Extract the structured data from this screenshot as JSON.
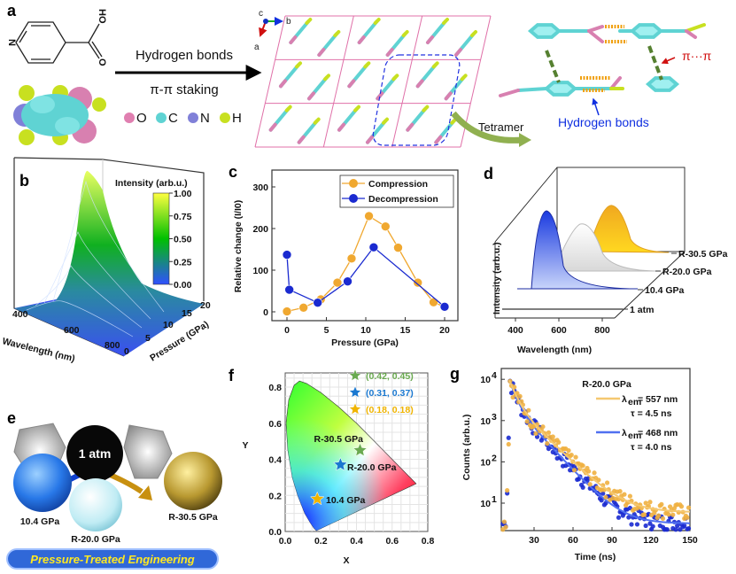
{
  "panels": {
    "a": {
      "label": "a",
      "ho": "HO",
      "o": "O",
      "n_atom": "N",
      "arrow_top": "Hydrogen bonds",
      "arrow_bottom": "π-π staking",
      "legend": [
        {
          "sym": "O",
          "color": "#e07fb0"
        },
        {
          "sym": "C",
          "color": "#5fd3d3"
        },
        {
          "sym": "N",
          "color": "#8080d8"
        },
        {
          "sym": "H",
          "color": "#c8e020"
        }
      ],
      "axes": {
        "c": "c",
        "b": "b",
        "a": "a"
      },
      "tetramer": "Tetramer",
      "pi_label": "π···π",
      "hbond_label": "Hydrogen bonds"
    },
    "b": {
      "label": "b",
      "colorbar_title": "Intensity (arb.u.)",
      "colorbar_ticks": [
        "1.00",
        "0.75",
        "0.50",
        "0.25",
        "0.00"
      ],
      "colorbar_colors": [
        "#ffff40",
        "#00c000",
        "#3050ff"
      ],
      "x_label": "Wavelength (nm)",
      "x_ticks": [
        "400",
        "600",
        "800"
      ],
      "y_label": "Pressure (GPa)",
      "y_ticks": [
        "0",
        "5",
        "10",
        "15",
        "20"
      ]
    },
    "d": {
      "label": "d",
      "y_label": "Intensity (arb.u.)",
      "x_label": "Wavelength (nm)",
      "x_ticks": [
        "400",
        "600",
        "800"
      ],
      "series": [
        "1 atm",
        "10.4 GPa",
        "R-20.0 GPa",
        "R-30.5 GPa"
      ]
    },
    "e": {
      "label": "e",
      "center": "1 atm",
      "spheres": [
        "10.4 GPa",
        "R-20.0 GPa",
        "R-30.5 GPa"
      ],
      "banner": "Pressure-Treated Engineering"
    },
    "c": {
      "label": "c"
    },
    "f": {
      "label": "f"
    },
    "g": {
      "label": "g"
    }
  },
  "chart_data": [
    {
      "id": "c",
      "type": "line",
      "xlabel": "Pressure (GPa)",
      "ylabel": "Relative change (I/I0)",
      "xlim": [
        -1.5,
        21.5
      ],
      "ylim": [
        -20,
        330
      ],
      "x_ticks": [
        0,
        5,
        10,
        15,
        20
      ],
      "y_ticks": [
        0,
        100,
        200,
        300
      ],
      "legend_position": "top-right",
      "series": [
        {
          "name": "Compression",
          "color": "#f0a830",
          "x": [
            0,
            2.1,
            4.3,
            6.4,
            8.2,
            10.4,
            12.5,
            14.1,
            16.6,
            18.6,
            20
          ],
          "y": [
            1,
            10,
            30,
            70,
            128,
            230,
            205,
            154,
            70,
            23,
            12
          ]
        },
        {
          "name": "Decompression",
          "color": "#1a2ad0",
          "x": [
            0,
            0.3,
            3.9,
            7.7,
            11,
            20
          ],
          "y": [
            137,
            53,
            22,
            73,
            155,
            12
          ]
        }
      ]
    },
    {
      "id": "f",
      "type": "scatter",
      "xlabel": "X",
      "ylabel": "Y",
      "xlim": [
        0,
        0.8
      ],
      "ylim": [
        0,
        0.85
      ],
      "x_ticks": [
        "0.0",
        "0.2",
        "0.4",
        "0.6",
        "0.8"
      ],
      "y_ticks": [
        "0.0",
        "0.2",
        "0.4",
        "0.6",
        "0.8"
      ],
      "grid": true,
      "points": [
        {
          "label": "R-30.5 GPa",
          "x": 0.42,
          "y": 0.45,
          "legend": "(0.42, 0.45)",
          "color": "#6aaa50"
        },
        {
          "label": "R-20.0 GPa",
          "x": 0.31,
          "y": 0.37,
          "legend": "(0.31, 0.37)",
          "color": "#1a78d0"
        },
        {
          "label": "10.4 GPa",
          "x": 0.18,
          "y": 0.18,
          "legend": "(0.18, 0.18)",
          "color": "#f0b400"
        }
      ]
    },
    {
      "id": "g",
      "type": "scatter",
      "title": "R-20.0 GPa",
      "xlabel": "Time (ns)",
      "ylabel": "Counts (arb.u.)",
      "xlim": [
        5,
        150
      ],
      "ylim": [
        2.2,
        19000
      ],
      "yscale": "log",
      "x_ticks": [
        "30",
        "60",
        "90",
        "120",
        "150"
      ],
      "y_ticks": [
        {
          "base": "10",
          "exp": "4"
        },
        {
          "base": "10",
          "exp": "3"
        },
        {
          "base": "10",
          "exp": "2"
        },
        {
          "base": "10",
          "exp": "1"
        }
      ],
      "series": [
        {
          "lambda_text": "λ",
          "sub": "em",
          "value": " = 557 nm",
          "tau": "τ = 4.5 ns",
          "tau_ns": 4.5,
          "color": "#f0b040",
          "fit_color": "#f5c870"
        },
        {
          "lambda_text": "λ",
          "sub": "em",
          "value": " = 468 nm",
          "tau": "τ = 4.0 ns",
          "tau_ns": 4.0,
          "color": "#1a2ad0",
          "fit_color": "#5070f0"
        }
      ]
    }
  ]
}
